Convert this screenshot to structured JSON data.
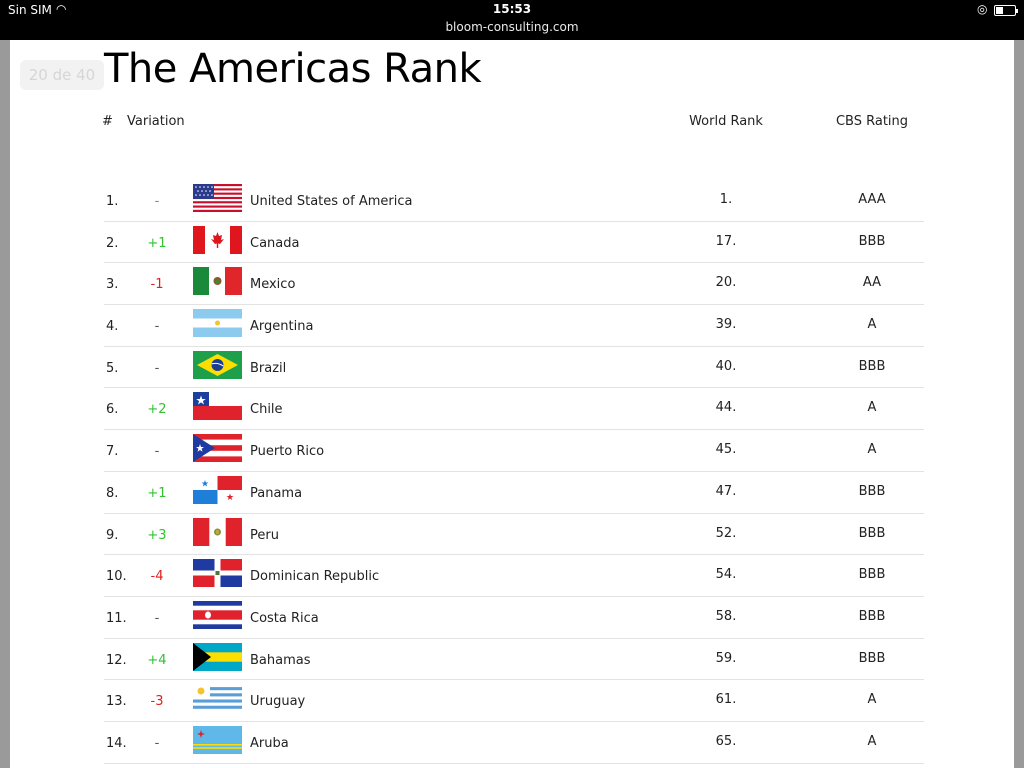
{
  "status_bar": {
    "carrier": "Sin SIM",
    "time": "15:53",
    "url": "bloom-consulting.com"
  },
  "slide": {
    "counter": "20 de 40",
    "title": "The Americas Rank"
  },
  "table": {
    "headers": {
      "number": "#",
      "variation": "Variation",
      "world_rank": "World Rank",
      "cbs_rating": "CBS Rating"
    },
    "rows": [
      {
        "rank": "1.",
        "variation": "-",
        "flag": "usa-flag-icon",
        "country": "United States of America",
        "world_rank": "1.",
        "cbs": "AAA"
      },
      {
        "rank": "2.",
        "variation": "+1",
        "flag": "canada-flag-icon",
        "country": "Canada",
        "world_rank": "17.",
        "cbs": "BBB"
      },
      {
        "rank": "3.",
        "variation": "-1",
        "flag": "mexico-flag-icon",
        "country": "Mexico",
        "world_rank": "20.",
        "cbs": "AA"
      },
      {
        "rank": "4.",
        "variation": "-",
        "flag": "argentina-flag-icon",
        "country": "Argentina",
        "world_rank": "39.",
        "cbs": "A"
      },
      {
        "rank": "5.",
        "variation": "-",
        "flag": "brazil-flag-icon",
        "country": "Brazil",
        "world_rank": "40.",
        "cbs": "BBB"
      },
      {
        "rank": "6.",
        "variation": "+2",
        "flag": "chile-flag-icon",
        "country": "Chile",
        "world_rank": "44.",
        "cbs": "A"
      },
      {
        "rank": "7.",
        "variation": "-",
        "flag": "puerto-rico-flag-icon",
        "country": "Puerto Rico",
        "world_rank": "45.",
        "cbs": "A"
      },
      {
        "rank": "8.",
        "variation": "+1",
        "flag": "panama-flag-icon",
        "country": "Panama",
        "world_rank": "47.",
        "cbs": "BBB"
      },
      {
        "rank": "9.",
        "variation": "+3",
        "flag": "peru-flag-icon",
        "country": "Peru",
        "world_rank": "52.",
        "cbs": "BBB"
      },
      {
        "rank": "10.",
        "variation": "-4",
        "flag": "dominican-republic-flag-icon",
        "country": "Dominican Republic",
        "world_rank": "54.",
        "cbs": "BBB"
      },
      {
        "rank": "11.",
        "variation": "-",
        "flag": "costa-rica-flag-icon",
        "country": "Costa Rica",
        "world_rank": "58.",
        "cbs": "BBB"
      },
      {
        "rank": "12.",
        "variation": "+4",
        "flag": "bahamas-flag-icon",
        "country": "Bahamas",
        "world_rank": "59.",
        "cbs": "BBB"
      },
      {
        "rank": "13.",
        "variation": "-3",
        "flag": "uruguay-flag-icon",
        "country": "Uruguay",
        "world_rank": "61.",
        "cbs": "A"
      },
      {
        "rank": "14.",
        "variation": "-",
        "flag": "aruba-flag-icon",
        "country": "Aruba",
        "world_rank": "65.",
        "cbs": "A"
      }
    ]
  },
  "colors": {
    "positive": "#31c131",
    "negative": "#e02020",
    "status_bar_bg": "#000000"
  }
}
